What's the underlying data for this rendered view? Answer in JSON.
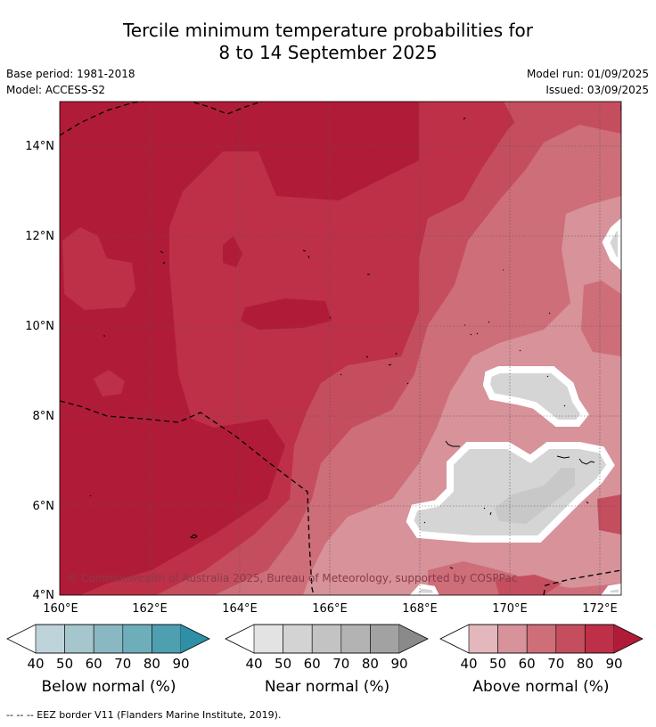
{
  "title": {
    "line1": "Tercile minimum temperature probabilities for",
    "line2": "8 to 14 September 2025"
  },
  "meta": {
    "base_period": "Base period: 1981-2018",
    "model": "Model: ACCESS-S2",
    "model_run": "Model run: 01/09/2025",
    "issued": "Issued: 03/09/2025"
  },
  "map": {
    "lat_ticks": [
      "14°N",
      "12°N",
      "10°N",
      "8°N",
      "6°N",
      "4°N"
    ],
    "lon_ticks": [
      "160°E",
      "162°E",
      "164°E",
      "166°E",
      "168°E",
      "170°E",
      "172°E"
    ],
    "copyright": "© Commonwealth of Australia 2025, Bureau of Meteorology, supported by COSPPac",
    "colors": {
      "above_90": "#b01c38",
      "above_80": "#bd3047",
      "above_70": "#c54e5e",
      "above_60": "#ce6e79",
      "above_50": "#d7929a",
      "normal_40": "#d5d5d5",
      "normal_50": "#c8c8c8"
    }
  },
  "colorbars": {
    "below": {
      "title": "Below normal (%)",
      "ticks": [
        "40",
        "50",
        "60",
        "70",
        "80",
        "90"
      ],
      "colors": [
        "#bfd4da",
        "#a5c6cc",
        "#89b8c2",
        "#6eaebb",
        "#4e9fb0",
        "#2e8fa6"
      ]
    },
    "near": {
      "title": "Near normal (%)",
      "ticks": [
        "40",
        "50",
        "60",
        "70",
        "80",
        "90"
      ],
      "colors": [
        "#e3e3e3",
        "#d3d3d3",
        "#c3c3c3",
        "#b3b3b3",
        "#a2a2a2",
        "#8a8a8a"
      ]
    },
    "above": {
      "title": "Above normal (%)",
      "ticks": [
        "40",
        "50",
        "60",
        "70",
        "80",
        "90"
      ],
      "colors": [
        "#e3b7bc",
        "#d7929a",
        "#ce6e79",
        "#c54e5e",
        "#bd3047",
        "#b01c38"
      ]
    }
  },
  "footer": {
    "legend_text": "--  --  -- EEZ border V11 (Flanders Marine Institute, 2019)."
  }
}
